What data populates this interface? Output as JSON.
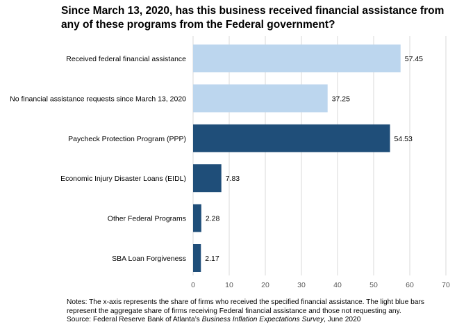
{
  "title": "Since March 13, 2020, has this business received financial assistance from any of these programs from the Federal government?",
  "notes": {
    "line1": "Notes: The x-axis represents the share of firms who received the specified financial assistance. The light blue bars represent the aggregate share of firms receiving Federal financial assistance and those not requesting any.",
    "source_prefix": "Source: Federal Reserve Bank of Atlanta’s ",
    "source_italic": "Business Inflation Expectations Survey",
    "source_suffix": ", June 2020"
  },
  "colors": {
    "light": "#bcd6ee",
    "dark": "#1f4e79",
    "grid": "#d9d9d9",
    "tick": "#595959"
  },
  "chart_data": {
    "type": "bar",
    "orientation": "horizontal",
    "categories": [
      "Received federal financial assistance",
      "No financial assistance requests since March 13, 2020",
      "Paycheck Protection Program (PPP)",
      "Economic Injury Disaster Loans (EIDL)",
      "Other Federal Programs",
      "SBA Loan Forgiveness"
    ],
    "values": [
      57.45,
      37.25,
      54.53,
      7.83,
      2.28,
      2.17
    ],
    "value_labels": [
      "57.45",
      "37.25",
      "54.53",
      "7.83",
      "2.28",
      "2.17"
    ],
    "bar_colors": [
      "light",
      "light",
      "dark",
      "dark",
      "dark",
      "dark"
    ],
    "xlim": [
      0,
      70
    ],
    "xticks": [
      0,
      10,
      20,
      30,
      40,
      50,
      60,
      70
    ],
    "grid": "vertical",
    "legend": "none"
  }
}
